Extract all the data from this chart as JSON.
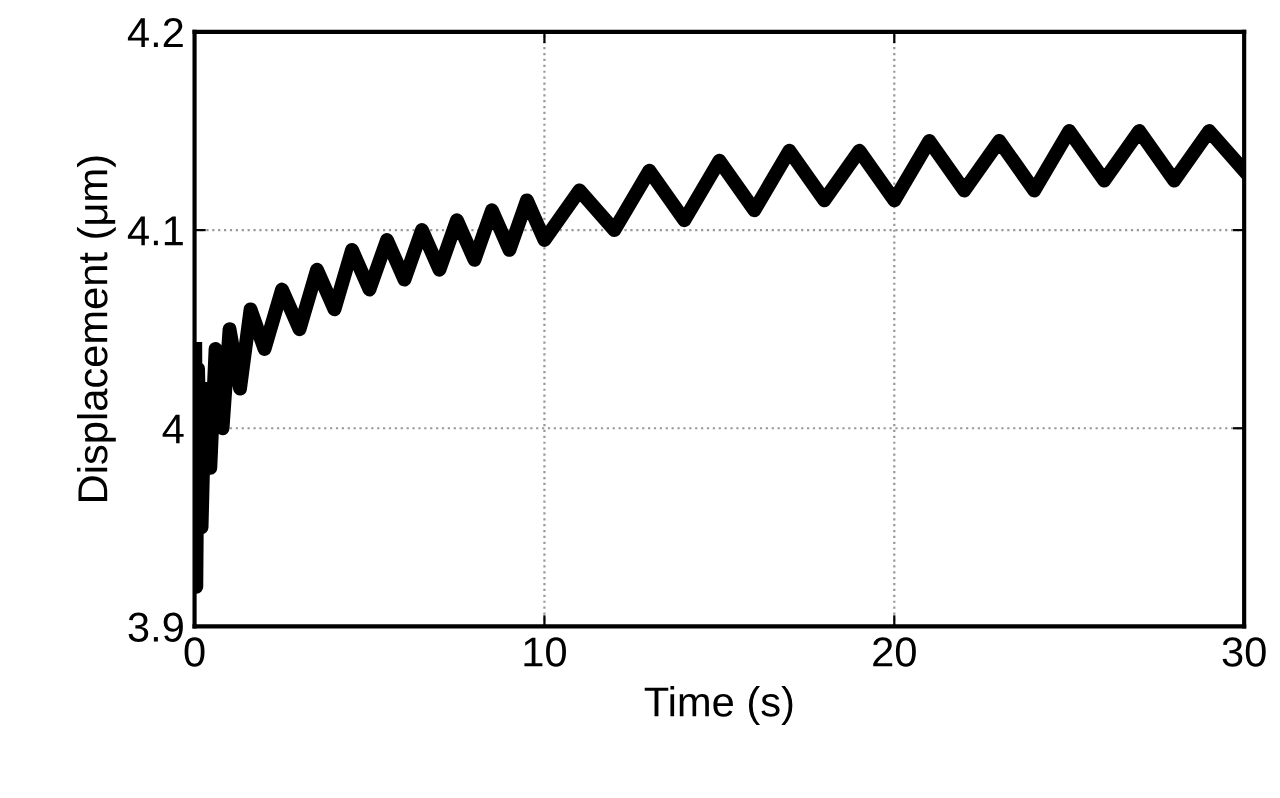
{
  "chart_data": {
    "type": "line",
    "xlabel": "Time (s)",
    "ylabel": "Displacement (μm)",
    "xlim": [
      0,
      30
    ],
    "ylim": [
      3.9,
      4.2
    ],
    "xticks": [
      0,
      10,
      20,
      30
    ],
    "yticks": [
      3.9,
      4,
      4.1,
      4.2
    ],
    "grid": true,
    "line_style": "solid",
    "series": [
      {
        "color": "#000000",
        "x": [
          0.02,
          0.05,
          0.1,
          0.2,
          0.3,
          0.45,
          0.6,
          0.8,
          1,
          1.3,
          1.6,
          2,
          2.5,
          3,
          3.5,
          4,
          4.5,
          5,
          5.5,
          6,
          6.5,
          7,
          7.5,
          8,
          8.5,
          9,
          9.5,
          10,
          11,
          12,
          13,
          14,
          15,
          16,
          17,
          18,
          19,
          20,
          21,
          22,
          23,
          24,
          25,
          26,
          27,
          28,
          29,
          30
        ],
        "values": [
          4.04,
          3.92,
          4.03,
          3.95,
          4.02,
          3.98,
          4.04,
          4,
          4.05,
          4.02,
          4.06,
          4.04,
          4.07,
          4.05,
          4.08,
          4.06,
          4.09,
          4.07,
          4.095,
          4.075,
          4.1,
          4.08,
          4.105,
          4.085,
          4.11,
          4.09,
          4.115,
          4.095,
          4.12,
          4.1,
          4.13,
          4.105,
          4.135,
          4.11,
          4.14,
          4.115,
          4.14,
          4.115,
          4.145,
          4.12,
          4.145,
          4.12,
          4.15,
          4.125,
          4.15,
          4.125,
          4.15,
          4.13
        ]
      }
    ]
  }
}
